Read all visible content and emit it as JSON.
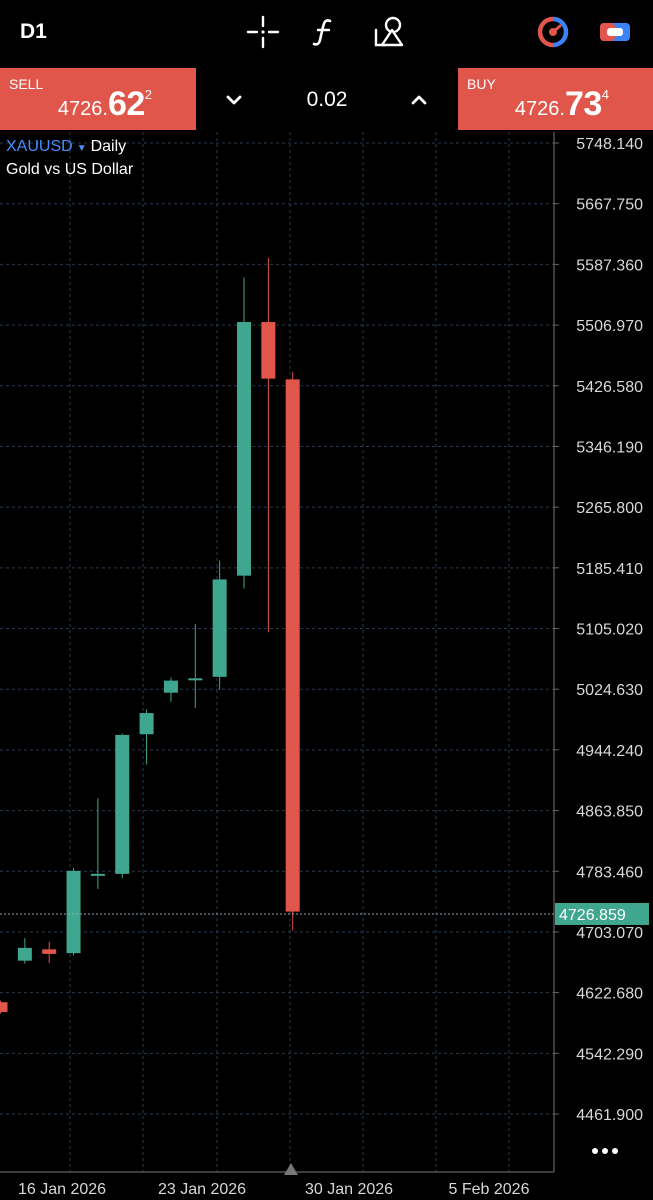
{
  "toolbar": {
    "timeframe": "D1",
    "icons": [
      "crosshair-icon",
      "function-icon",
      "objects-icon",
      "one-click-trading-icon",
      "toggle-icon"
    ]
  },
  "trade_panel": {
    "sell_label": "SELL",
    "sell_price_small": "4726.",
    "sell_price_big": "62",
    "sell_price_sup": "2",
    "buy_label": "BUY",
    "buy_price_small": "4726.",
    "buy_price_big": "73",
    "buy_price_sup": "4",
    "lot": "0.02"
  },
  "symbol": {
    "ticker": "XAUUSD",
    "period": "Daily",
    "description": "Gold vs US Dollar"
  },
  "colors": {
    "bull": "#3fa690",
    "bear": "#e0564a",
    "accent": "#4a8cff"
  },
  "chart_data": {
    "type": "candlestick",
    "y_ticks": [
      "5748.140",
      "5667.750",
      "5587.360",
      "5506.970",
      "5426.580",
      "5346.190",
      "5265.800",
      "5185.410",
      "5105.020",
      "5024.630",
      "4944.240",
      "4863.850",
      "4783.460",
      "4703.070",
      "4622.680",
      "4542.290",
      "4461.900"
    ],
    "ylim": [
      4420,
      5760
    ],
    "x_labels": [
      "16 Jan 2026",
      "23 Jan 2026",
      "30 Jan 2026",
      "5 Feb 2026"
    ],
    "current_price": 4726.859,
    "current_price_label": "4726.859",
    "candles": [
      {
        "open": 4610,
        "close": 4597,
        "high": 4612,
        "low": 4595
      },
      {
        "open": 4665,
        "close": 4682,
        "high": 4695,
        "low": 4661
      },
      {
        "open": 4680,
        "close": 4674,
        "high": 4690,
        "low": 4662
      },
      {
        "open": 4675,
        "close": 4784,
        "high": 4788,
        "low": 4672
      },
      {
        "open": 4778,
        "close": 4780,
        "high": 4880,
        "low": 4760
      },
      {
        "open": 4780,
        "close": 4964,
        "high": 4966,
        "low": 4774
      },
      {
        "open": 4965,
        "close": 4993,
        "high": 4998,
        "low": 4925
      },
      {
        "open": 5020,
        "close": 5036,
        "high": 5040,
        "low": 5008
      },
      {
        "open": 5037,
        "close": 5039,
        "high": 5111,
        "low": 5000
      },
      {
        "open": 5041,
        "close": 5170,
        "high": 5195,
        "low": 5024
      },
      {
        "open": 5175,
        "close": 5511,
        "high": 5570,
        "low": 5158
      },
      {
        "open": 5511,
        "close": 5436,
        "high": 5596,
        "low": 5100
      },
      {
        "open": 5435,
        "close": 4730,
        "high": 5445,
        "low": 4705
      }
    ]
  }
}
